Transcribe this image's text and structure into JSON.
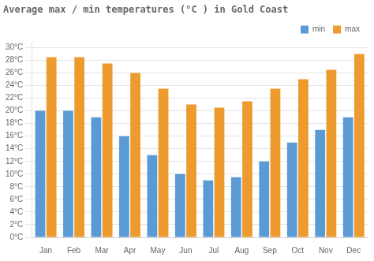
{
  "chart_data": {
    "type": "bar",
    "title": "Average max / min temperatures (°C ) in Gold Coast",
    "categories": [
      "Jan",
      "Feb",
      "Mar",
      "Apr",
      "May",
      "Jun",
      "Jul",
      "Aug",
      "Sep",
      "Oct",
      "Nov",
      "Dec"
    ],
    "series": [
      {
        "name": "min",
        "color": "#5b9bd5",
        "values": [
          20,
          20,
          19,
          16,
          13,
          10,
          9,
          9.5,
          12,
          15,
          17,
          19
        ]
      },
      {
        "name": "max",
        "color": "#ed9a2e",
        "values": [
          28.5,
          28.5,
          27.5,
          26,
          23.5,
          21,
          20.5,
          21.5,
          23.5,
          25,
          26.5,
          29
        ]
      }
    ],
    "ylim": [
      0,
      31
    ],
    "yticks": [
      {
        "value": 0,
        "label": "0°C"
      },
      {
        "value": 2,
        "label": "2°C"
      },
      {
        "value": 4,
        "label": "4°C"
      },
      {
        "value": 6,
        "label": "6°C"
      },
      {
        "value": 8,
        "label": "8°C"
      },
      {
        "value": 10,
        "label": "10°C"
      },
      {
        "value": 12,
        "label": "12°C"
      },
      {
        "value": 14,
        "label": "14°C"
      },
      {
        "value": 16,
        "label": "16°C"
      },
      {
        "value": 18,
        "label": "18°C"
      },
      {
        "value": 20,
        "label": "20°C"
      },
      {
        "value": 22,
        "label": "22°C"
      },
      {
        "value": 24,
        "label": "24°C"
      },
      {
        "value": 26,
        "label": "26°C"
      },
      {
        "value": 28,
        "label": "28°C"
      },
      {
        "value": 30,
        "label": "30°C"
      }
    ],
    "grid": true,
    "legend": "upper right"
  }
}
